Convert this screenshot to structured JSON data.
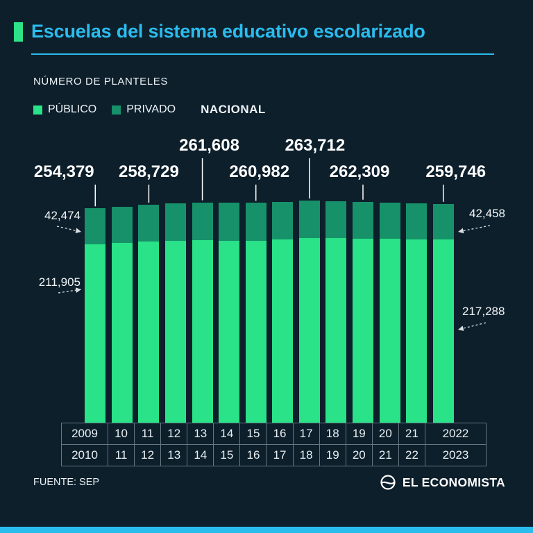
{
  "page": {
    "title": "Escuelas del sistema educativo escolarizado",
    "subtitle": "NÚMERO DE PLANTELES",
    "source": "FUENTE: SEP",
    "brand": "EL ECONOMISTA"
  },
  "colors": {
    "background": "#0d1f2b",
    "accent_cyan": "#2bbcee",
    "accent_green": "#2de38a",
    "public_green": "#2ae287",
    "private_green": "#17916a"
  },
  "legend": {
    "items": [
      {
        "label": "PÚBLICO",
        "swatch": "#2ae287",
        "bold": false
      },
      {
        "label": "PRIVADO",
        "swatch": "#17916a",
        "bold": false
      },
      {
        "label": "NACIONAL",
        "swatch": null,
        "bold": true
      }
    ]
  },
  "chart_data": {
    "type": "bar",
    "stacked": true,
    "title": "Escuelas del sistema educativo escolarizado",
    "ylabel": "NÚMERO DE PLANTELES",
    "legend_position": "top",
    "x_row1": [
      "2009",
      "10",
      "11",
      "12",
      "13",
      "14",
      "15",
      "16",
      "17",
      "18",
      "19",
      "20",
      "21",
      "2022"
    ],
    "x_row2": [
      "2010",
      "11",
      "12",
      "13",
      "14",
      "15",
      "16",
      "17",
      "18",
      "19",
      "20",
      "21",
      "22",
      "2023"
    ],
    "series": [
      {
        "name": "PÚBLICO",
        "color": "#2ae287",
        "values": [
          211905,
          213500,
          215029,
          215900,
          216808,
          216300,
          216082,
          217600,
          219312,
          219000,
          218709,
          218000,
          217600,
          217288
        ]
      },
      {
        "name": "PRIVADO",
        "color": "#17916a",
        "values": [
          42474,
          43100,
          43700,
          44300,
          44800,
          45000,
          44900,
          44700,
          44400,
          44000,
          43600,
          43200,
          42800,
          42458
        ]
      }
    ],
    "totals": [
      254379,
      256600,
      258729,
      260200,
      261608,
      261300,
      260982,
      262300,
      263712,
      263000,
      262309,
      261200,
      260400,
      259746
    ],
    "annotations": [
      {
        "index": 0,
        "text": "254,379",
        "row": "low"
      },
      {
        "index": 2,
        "text": "258,729",
        "row": "low"
      },
      {
        "index": 4,
        "text": "261,608",
        "row": "high"
      },
      {
        "index": 6,
        "text": "260,982",
        "row": "low"
      },
      {
        "index": 8,
        "text": "263,712",
        "row": "high"
      },
      {
        "index": 10,
        "text": "262,309",
        "row": "low"
      },
      {
        "index": 13,
        "text": "259,746",
        "row": "low"
      }
    ],
    "side_labels": [
      {
        "text": "42,474",
        "side": "left",
        "target": "private-2009-2010"
      },
      {
        "text": "211,905",
        "side": "left",
        "target": "public-2009-2010"
      },
      {
        "text": "42,458",
        "side": "right",
        "target": "private-2022-2023"
      },
      {
        "text": "217,288",
        "side": "right",
        "target": "public-2022-2023"
      }
    ]
  }
}
